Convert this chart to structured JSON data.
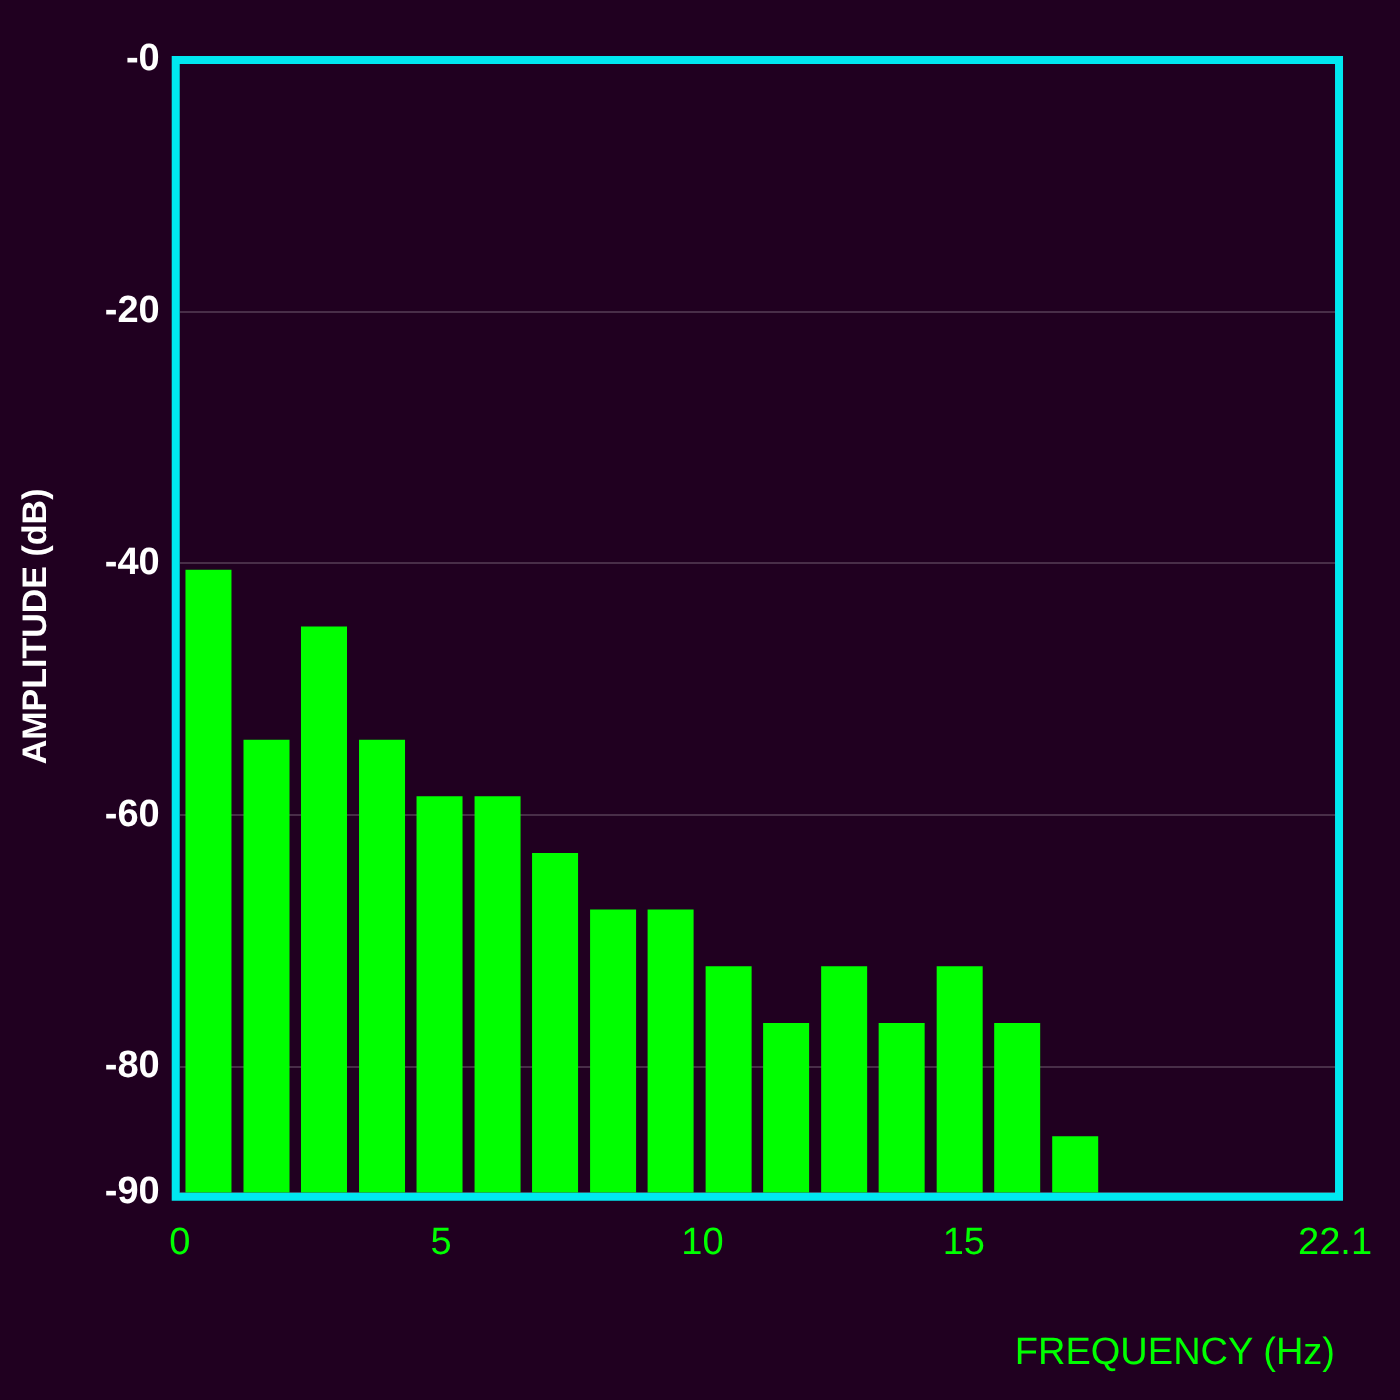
{
  "chart_data": {
    "type": "bar",
    "xlabel": "FREQUENCY (Hz)",
    "ylabel": "AMPLITUDE (dB)",
    "x": [
      0.55,
      1.66,
      2.76,
      3.87,
      4.97,
      6.08,
      7.18,
      8.29,
      9.39,
      10.5,
      11.6,
      12.71,
      13.81,
      14.92,
      16.02,
      17.13
    ],
    "base": [
      -90,
      -90,
      -90,
      -90,
      -90,
      -90,
      -90,
      -90,
      -90,
      -90,
      -90,
      -90,
      -90,
      -90,
      -90,
      -90
    ],
    "values": [
      49.5,
      36,
      45,
      36,
      31.5,
      31.5,
      27,
      22.5,
      22.5,
      18,
      13.5,
      18,
      13.5,
      18,
      13.5,
      4.5
    ],
    "color": "#00ff00",
    "xlim": [
      0,
      22.1
    ],
    "xticks": [
      0,
      5,
      10,
      15,
      22.1
    ],
    "ylim": [
      -90,
      0
    ],
    "yticks": [
      {
        "value": 0,
        "label": "-0"
      },
      -20,
      -40,
      -60,
      -80,
      -90
    ],
    "grid": "y",
    "legend": false
  }
}
